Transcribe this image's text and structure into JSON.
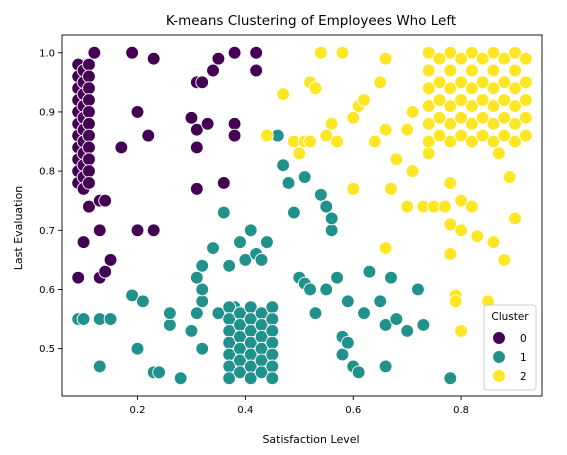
{
  "chart_data": {
    "type": "scatter",
    "title": "K-means Clustering of Employees Who Left",
    "xlabel": "Satisfaction Level",
    "ylabel": "Last Evaluation",
    "xlim": [
      0.06,
      0.95
    ],
    "ylim": [
      0.42,
      1.03
    ],
    "xticks": [
      0.2,
      0.4,
      0.6,
      0.8
    ],
    "xtick_labels": [
      "0.2",
      "0.4",
      "0.6",
      "0.8"
    ],
    "yticks": [
      0.5,
      0.6,
      0.7,
      0.8,
      0.9,
      1.0
    ],
    "ytick_labels": [
      "0.5",
      "0.6",
      "0.7",
      "0.8",
      "0.9",
      "1.0"
    ],
    "grid": false,
    "legend": {
      "title": "Cluster",
      "placement": "lower-right"
    },
    "series": [
      {
        "name": "0",
        "color": "#440154",
        "points": [
          [
            0.09,
            0.98
          ],
          [
            0.09,
            0.96
          ],
          [
            0.09,
            0.94
          ],
          [
            0.09,
            0.92
          ],
          [
            0.09,
            0.9
          ],
          [
            0.09,
            0.88
          ],
          [
            0.09,
            0.86
          ],
          [
            0.09,
            0.84
          ],
          [
            0.09,
            0.82
          ],
          [
            0.09,
            0.8
          ],
          [
            0.09,
            0.78
          ],
          [
            0.1,
            0.97
          ],
          [
            0.1,
            0.95
          ],
          [
            0.1,
            0.93
          ],
          [
            0.1,
            0.91
          ],
          [
            0.1,
            0.89
          ],
          [
            0.1,
            0.87
          ],
          [
            0.1,
            0.85
          ],
          [
            0.1,
            0.83
          ],
          [
            0.1,
            0.81
          ],
          [
            0.1,
            0.79
          ],
          [
            0.1,
            0.77
          ],
          [
            0.11,
            0.98
          ],
          [
            0.11,
            0.96
          ],
          [
            0.11,
            0.94
          ],
          [
            0.11,
            0.92
          ],
          [
            0.11,
            0.9
          ],
          [
            0.11,
            0.88
          ],
          [
            0.11,
            0.86
          ],
          [
            0.11,
            0.84
          ],
          [
            0.11,
            0.82
          ],
          [
            0.11,
            0.8
          ],
          [
            0.11,
            0.78
          ],
          [
            0.09,
            0.62
          ],
          [
            0.1,
            0.68
          ],
          [
            0.11,
            0.74
          ],
          [
            0.12,
            1.0
          ],
          [
            0.13,
            0.75
          ],
          [
            0.13,
            0.7
          ],
          [
            0.13,
            0.62
          ],
          [
            0.14,
            0.63
          ],
          [
            0.14,
            0.75
          ],
          [
            0.15,
            0.65
          ],
          [
            0.17,
            0.84
          ],
          [
            0.19,
            1.0
          ],
          [
            0.2,
            0.9
          ],
          [
            0.2,
            0.7
          ],
          [
            0.22,
            0.86
          ],
          [
            0.23,
            0.99
          ],
          [
            0.23,
            0.7
          ],
          [
            0.3,
            0.89
          ],
          [
            0.31,
            0.95
          ],
          [
            0.31,
            0.87
          ],
          [
            0.31,
            0.84
          ],
          [
            0.31,
            0.77
          ],
          [
            0.32,
            0.95
          ],
          [
            0.33,
            0.88
          ],
          [
            0.34,
            0.97
          ],
          [
            0.35,
            0.99
          ],
          [
            0.36,
            0.78
          ],
          [
            0.38,
            1.0
          ],
          [
            0.38,
            0.88
          ],
          [
            0.38,
            0.86
          ],
          [
            0.42,
            1.0
          ],
          [
            0.42,
            0.97
          ]
        ]
      },
      {
        "name": "1",
        "color": "#21918c",
        "points": [
          [
            0.09,
            0.55
          ],
          [
            0.1,
            0.55
          ],
          [
            0.13,
            0.55
          ],
          [
            0.13,
            0.47
          ],
          [
            0.15,
            0.55
          ],
          [
            0.19,
            0.59
          ],
          [
            0.2,
            0.5
          ],
          [
            0.21,
            0.58
          ],
          [
            0.23,
            0.46
          ],
          [
            0.24,
            0.46
          ],
          [
            0.26,
            0.54
          ],
          [
            0.26,
            0.56
          ],
          [
            0.28,
            0.45
          ],
          [
            0.3,
            0.53
          ],
          [
            0.31,
            0.56
          ],
          [
            0.31,
            0.62
          ],
          [
            0.32,
            0.58
          ],
          [
            0.32,
            0.6
          ],
          [
            0.32,
            0.64
          ],
          [
            0.32,
            0.5
          ],
          [
            0.34,
            0.67
          ],
          [
            0.35,
            0.56
          ],
          [
            0.36,
            0.73
          ],
          [
            0.37,
            0.64
          ],
          [
            0.38,
            0.57
          ],
          [
            0.39,
            0.68
          ],
          [
            0.4,
            0.65
          ],
          [
            0.41,
            0.7
          ],
          [
            0.42,
            0.66
          ],
          [
            0.43,
            0.65
          ],
          [
            0.44,
            0.68
          ],
          [
            0.37,
            0.57
          ],
          [
            0.37,
            0.55
          ],
          [
            0.37,
            0.53
          ],
          [
            0.37,
            0.51
          ],
          [
            0.37,
            0.49
          ],
          [
            0.37,
            0.47
          ],
          [
            0.37,
            0.45
          ],
          [
            0.39,
            0.56
          ],
          [
            0.39,
            0.54
          ],
          [
            0.39,
            0.52
          ],
          [
            0.39,
            0.5
          ],
          [
            0.39,
            0.48
          ],
          [
            0.39,
            0.46
          ],
          [
            0.41,
            0.57
          ],
          [
            0.41,
            0.55
          ],
          [
            0.41,
            0.53
          ],
          [
            0.41,
            0.51
          ],
          [
            0.41,
            0.49
          ],
          [
            0.41,
            0.47
          ],
          [
            0.41,
            0.45
          ],
          [
            0.43,
            0.56
          ],
          [
            0.43,
            0.54
          ],
          [
            0.43,
            0.52
          ],
          [
            0.43,
            0.5
          ],
          [
            0.43,
            0.48
          ],
          [
            0.43,
            0.46
          ],
          [
            0.45,
            0.57
          ],
          [
            0.45,
            0.55
          ],
          [
            0.45,
            0.53
          ],
          [
            0.45,
            0.51
          ],
          [
            0.45,
            0.49
          ],
          [
            0.45,
            0.47
          ],
          [
            0.45,
            0.45
          ],
          [
            0.46,
            0.86
          ],
          [
            0.47,
            0.81
          ],
          [
            0.48,
            0.78
          ],
          [
            0.49,
            0.73
          ],
          [
            0.5,
            0.62
          ],
          [
            0.51,
            0.79
          ],
          [
            0.51,
            0.61
          ],
          [
            0.52,
            0.6
          ],
          [
            0.53,
            0.56
          ],
          [
            0.54,
            0.76
          ],
          [
            0.55,
            0.74
          ],
          [
            0.55,
            0.6
          ],
          [
            0.56,
            0.7
          ],
          [
            0.56,
            0.72
          ],
          [
            0.57,
            0.62
          ],
          [
            0.58,
            0.52
          ],
          [
            0.58,
            0.49
          ],
          [
            0.59,
            0.58
          ],
          [
            0.59,
            0.51
          ],
          [
            0.6,
            0.47
          ],
          [
            0.61,
            0.46
          ],
          [
            0.62,
            0.56
          ],
          [
            0.63,
            0.63
          ],
          [
            0.65,
            0.58
          ],
          [
            0.66,
            0.54
          ],
          [
            0.66,
            0.47
          ],
          [
            0.67,
            0.62
          ],
          [
            0.68,
            0.55
          ],
          [
            0.7,
            0.53
          ],
          [
            0.72,
            0.6
          ],
          [
            0.73,
            0.54
          ],
          [
            0.78,
            0.45
          ]
        ]
      },
      {
        "name": "2",
        "color": "#fde725",
        "points": [
          [
            0.44,
            0.86
          ],
          [
            0.47,
            0.93
          ],
          [
            0.49,
            0.85
          ],
          [
            0.5,
            0.83
          ],
          [
            0.51,
            0.85
          ],
          [
            0.52,
            0.85
          ],
          [
            0.52,
            0.95
          ],
          [
            0.53,
            0.94
          ],
          [
            0.54,
            1.0
          ],
          [
            0.55,
            0.86
          ],
          [
            0.56,
            0.88
          ],
          [
            0.57,
            0.85
          ],
          [
            0.58,
            1.0
          ],
          [
            0.6,
            0.77
          ],
          [
            0.6,
            0.89
          ],
          [
            0.61,
            0.91
          ],
          [
            0.62,
            0.92
          ],
          [
            0.64,
            0.85
          ],
          [
            0.65,
            0.95
          ],
          [
            0.66,
            0.67
          ],
          [
            0.66,
            0.87
          ],
          [
            0.66,
            0.99
          ],
          [
            0.67,
            0.77
          ],
          [
            0.68,
            0.82
          ],
          [
            0.7,
            0.74
          ],
          [
            0.7,
            0.87
          ],
          [
            0.71,
            0.8
          ],
          [
            0.71,
            0.9
          ],
          [
            0.73,
            0.74
          ],
          [
            0.74,
            0.83
          ],
          [
            0.75,
            0.74
          ],
          [
            0.77,
            0.74
          ],
          [
            0.78,
            0.78
          ],
          [
            0.78,
            0.71
          ],
          [
            0.78,
            0.66
          ],
          [
            0.79,
            0.59
          ],
          [
            0.79,
            0.58
          ],
          [
            0.8,
            0.53
          ],
          [
            0.8,
            0.75
          ],
          [
            0.8,
            0.7
          ],
          [
            0.82,
            0.74
          ],
          [
            0.83,
            0.69
          ],
          [
            0.85,
            0.58
          ],
          [
            0.86,
            0.68
          ],
          [
            0.87,
            0.83
          ],
          [
            0.88,
            0.65
          ],
          [
            0.89,
            0.79
          ],
          [
            0.9,
            0.72
          ],
          [
            0.74,
            1.0
          ],
          [
            0.78,
            1.0
          ],
          [
            0.82,
            1.0
          ],
          [
            0.86,
            1.0
          ],
          [
            0.9,
            1.0
          ],
          [
            0.74,
            0.97
          ],
          [
            0.78,
            0.97
          ],
          [
            0.82,
            0.97
          ],
          [
            0.86,
            0.97
          ],
          [
            0.9,
            0.97
          ],
          [
            0.74,
            0.94
          ],
          [
            0.78,
            0.94
          ],
          [
            0.82,
            0.94
          ],
          [
            0.86,
            0.94
          ],
          [
            0.9,
            0.94
          ],
          [
            0.74,
            0.91
          ],
          [
            0.78,
            0.91
          ],
          [
            0.82,
            0.91
          ],
          [
            0.86,
            0.91
          ],
          [
            0.9,
            0.91
          ],
          [
            0.74,
            0.88
          ],
          [
            0.78,
            0.88
          ],
          [
            0.82,
            0.88
          ],
          [
            0.86,
            0.88
          ],
          [
            0.9,
            0.88
          ],
          [
            0.74,
            0.85
          ],
          [
            0.78,
            0.85
          ],
          [
            0.82,
            0.85
          ],
          [
            0.86,
            0.85
          ],
          [
            0.9,
            0.85
          ],
          [
            0.76,
            0.99
          ],
          [
            0.8,
            0.99
          ],
          [
            0.84,
            0.99
          ],
          [
            0.88,
            0.99
          ],
          [
            0.92,
            0.99
          ],
          [
            0.76,
            0.95
          ],
          [
            0.8,
            0.95
          ],
          [
            0.84,
            0.95
          ],
          [
            0.88,
            0.95
          ],
          [
            0.92,
            0.95
          ],
          [
            0.76,
            0.92
          ],
          [
            0.8,
            0.92
          ],
          [
            0.84,
            0.92
          ],
          [
            0.88,
            0.92
          ],
          [
            0.92,
            0.92
          ],
          [
            0.76,
            0.89
          ],
          [
            0.8,
            0.89
          ],
          [
            0.84,
            0.89
          ],
          [
            0.88,
            0.89
          ],
          [
            0.92,
            0.89
          ],
          [
            0.76,
            0.86
          ],
          [
            0.8,
            0.86
          ],
          [
            0.84,
            0.86
          ],
          [
            0.88,
            0.86
          ],
          [
            0.92,
            0.86
          ]
        ]
      }
    ]
  }
}
